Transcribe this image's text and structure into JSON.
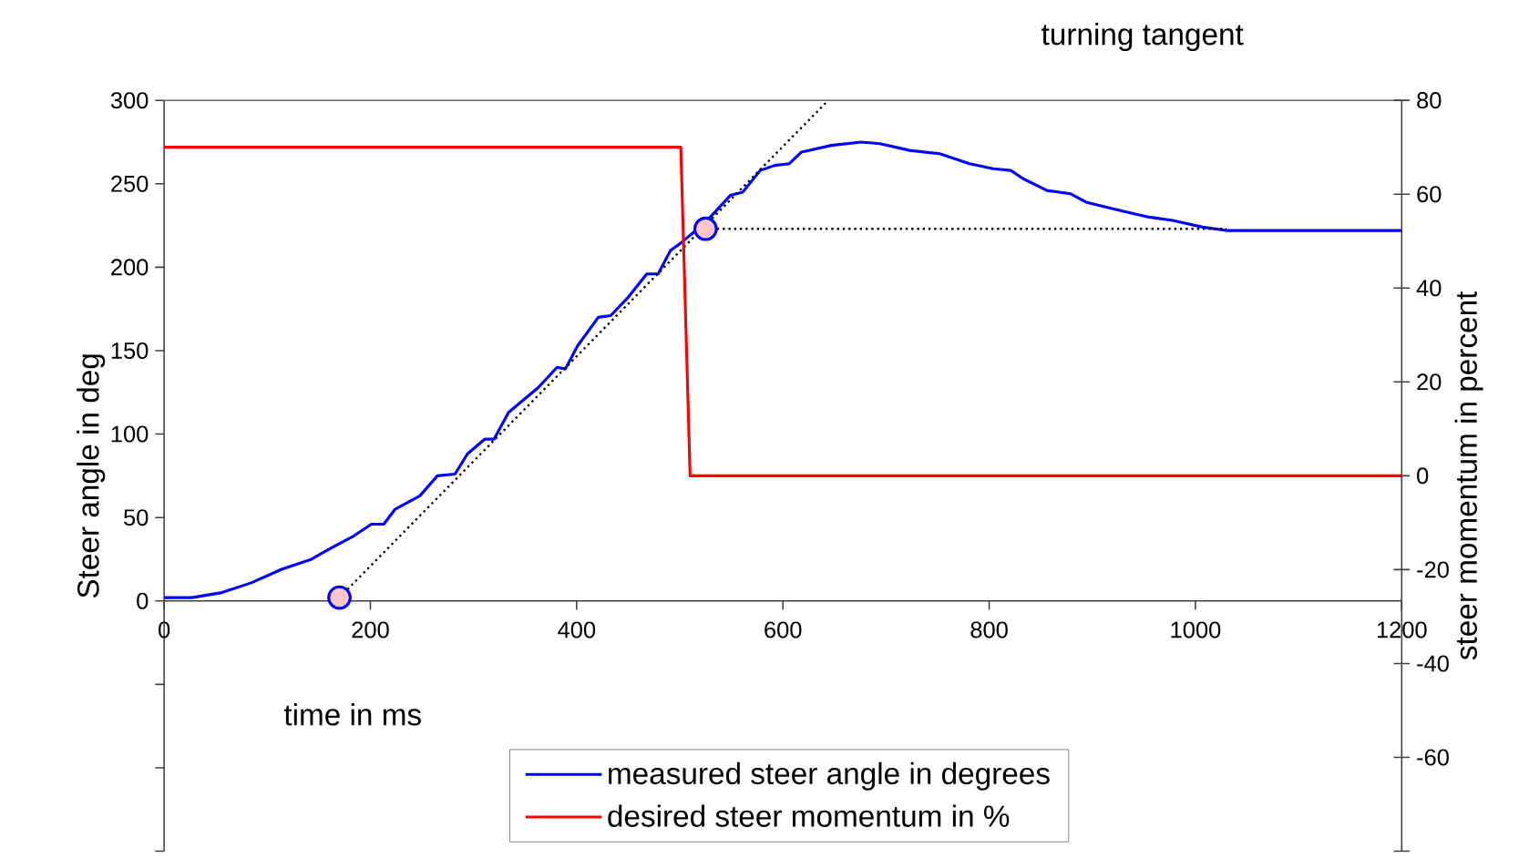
{
  "chart_data": {
    "type": "line",
    "xlabel": "time in ms",
    "ylabel": "Steer angle in deg",
    "y2label": "steer momentum in percent",
    "xlim": [
      0,
      1200
    ],
    "xticks": [
      0,
      200,
      400,
      600,
      800,
      1000,
      1200
    ],
    "ylim": [
      -150,
      300
    ],
    "yticks": [
      {
        "value": -150,
        "label": null
      },
      {
        "value": -100,
        "label": null
      },
      {
        "value": -50,
        "label": null
      },
      0,
      50,
      100,
      150,
      200,
      250,
      300
    ],
    "y2lim": [
      -80,
      80
    ],
    "y2ticks": [
      {
        "value": -80,
        "label": null
      },
      -60,
      -40,
      -20,
      0,
      20,
      40,
      60,
      80
    ],
    "legend": "bottom",
    "annotations": [
      "turning tangent"
    ],
    "series": [
      {
        "name": "measured steer angle in degrees",
        "color": "#0000ff",
        "x": [
          0,
          27,
          56,
          85,
          114,
          143,
          160,
          184,
          201,
          213,
          224,
          248,
          265,
          282,
          294,
          311,
          320,
          334,
          363,
          381,
          389,
          401,
          421,
          433,
          450,
          468,
          479,
          491,
          502,
          525,
          549,
          561,
          578,
          592,
          606,
          618,
          647,
          676,
          694,
          723,
          752,
          781,
          804,
          821,
          833,
          856,
          879,
          894,
          920,
          955,
          978,
          1007,
          1030,
          1200
        ],
        "values": [
          2,
          2,
          5,
          11,
          19,
          25,
          31,
          39,
          46,
          46,
          55,
          63,
          75,
          76,
          88,
          97,
          97,
          113,
          128,
          140,
          139,
          153,
          170,
          171,
          182,
          196,
          196,
          210,
          215,
          227,
          243,
          245,
          258,
          261,
          262,
          269,
          273,
          275,
          274,
          270,
          268,
          262,
          259,
          258,
          253,
          246,
          244,
          239,
          235,
          230,
          228,
          224,
          222,
          222
        ]
      },
      {
        "name": "desired steer momentum in %",
        "color": "#ff0000",
        "axis": "y2",
        "x": [
          0,
          501,
          510,
          1200
        ],
        "values": [
          70,
          70,
          0,
          0
        ]
      },
      {
        "type": "line",
        "color": "#000000",
        "line_style": "dotted",
        "x": [
          170,
          644
        ],
        "values": [
          2,
          300
        ]
      },
      {
        "type": "line",
        "color": "#000000",
        "line_style": "dotted",
        "x": [
          525,
          1030
        ],
        "values": [
          223,
          223
        ]
      },
      {
        "type": "scatter",
        "color": "#0000ff",
        "marker": "circle",
        "x": [
          170,
          525
        ],
        "values": [
          2,
          223
        ]
      }
    ]
  }
}
